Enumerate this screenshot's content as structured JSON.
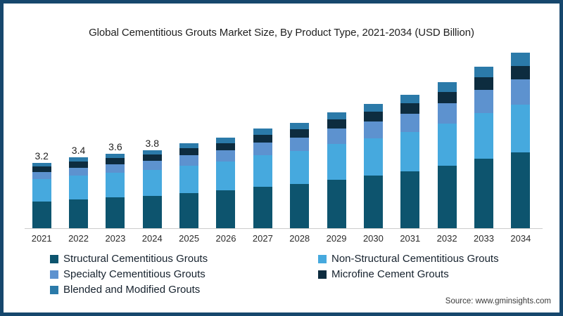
{
  "window": {
    "border_color": "#16476d",
    "background": "#ffffff"
  },
  "header": {
    "title": "Global Cementitious Grouts Market Size, By Product Type, 2021-2034 (USD Billion)"
  },
  "chart_data": {
    "type": "bar",
    "stacked": true,
    "title": "Global Cementitious Grouts Market Size, By Product Type, 2021-2034 (USD Billion)",
    "xlabel": "",
    "ylabel": "USD Billion",
    "grid": false,
    "legend_position": "bottom",
    "axis_line_color": "#cccccc",
    "ylim": [
      0,
      8.67
    ],
    "categories": [
      "2021",
      "2022",
      "2023",
      "2024",
      "2025",
      "2026",
      "2027",
      "2028",
      "2029",
      "2030",
      "2031",
      "2032",
      "2033",
      "2034"
    ],
    "totals": [
      3.2,
      3.4,
      3.6,
      3.8,
      4.1,
      4.4,
      4.8,
      5.1,
      5.6,
      6.0,
      6.5,
      7.1,
      7.8,
      8.5
    ],
    "bar_labels": [
      "3.2",
      "3.4",
      "3.6",
      "3.8",
      "",
      "",
      "",
      "",
      "",
      "",
      "",
      "",
      "",
      ""
    ],
    "series": [
      {
        "name": "Structural Cementitious Grouts",
        "color": "#0d546e",
        "values": [
          1.3,
          1.39,
          1.48,
          1.57,
          1.7,
          1.83,
          2.0,
          2.14,
          2.36,
          2.54,
          2.77,
          3.04,
          3.36,
          3.67
        ]
      },
      {
        "name": "Non-Structural Cementitious Grouts",
        "color": "#46a9de",
        "values": [
          1.1,
          1.15,
          1.2,
          1.25,
          1.33,
          1.41,
          1.52,
          1.59,
          1.72,
          1.81,
          1.92,
          2.05,
          2.2,
          2.3
        ]
      },
      {
        "name": "Specialty Cementitious Grouts",
        "color": "#5d92cf",
        "values": [
          0.35,
          0.38,
          0.42,
          0.45,
          0.5,
          0.55,
          0.61,
          0.66,
          0.74,
          0.81,
          0.9,
          1.0,
          1.12,
          1.22
        ]
      },
      {
        "name": "Microfine Cement Grouts",
        "color": "#0d2c3f",
        "values": [
          0.28,
          0.29,
          0.3,
          0.31,
          0.33,
          0.35,
          0.38,
          0.4,
          0.44,
          0.46,
          0.5,
          0.55,
          0.61,
          0.66
        ]
      },
      {
        "name": "Blended and Modified Grouts",
        "color": "#2b7aa9",
        "values": [
          0.17,
          0.19,
          0.2,
          0.22,
          0.24,
          0.26,
          0.29,
          0.31,
          0.34,
          0.38,
          0.41,
          0.46,
          0.51,
          0.65
        ]
      }
    ]
  },
  "legend": {
    "items": [
      {
        "label": "Structural Cementitious Grouts",
        "color": "#0d546e"
      },
      {
        "label": "Non-Structural Cementitious Grouts",
        "color": "#46a9de"
      },
      {
        "label": "Specialty Cementitious Grouts",
        "color": "#5d92cf"
      },
      {
        "label": "Microfine Cement Grouts",
        "color": "#0d2c3f"
      },
      {
        "label": "Blended and Modified Grouts",
        "color": "#2b7aa9"
      }
    ]
  },
  "footer": {
    "source": "Source: www.gminsights.com"
  }
}
